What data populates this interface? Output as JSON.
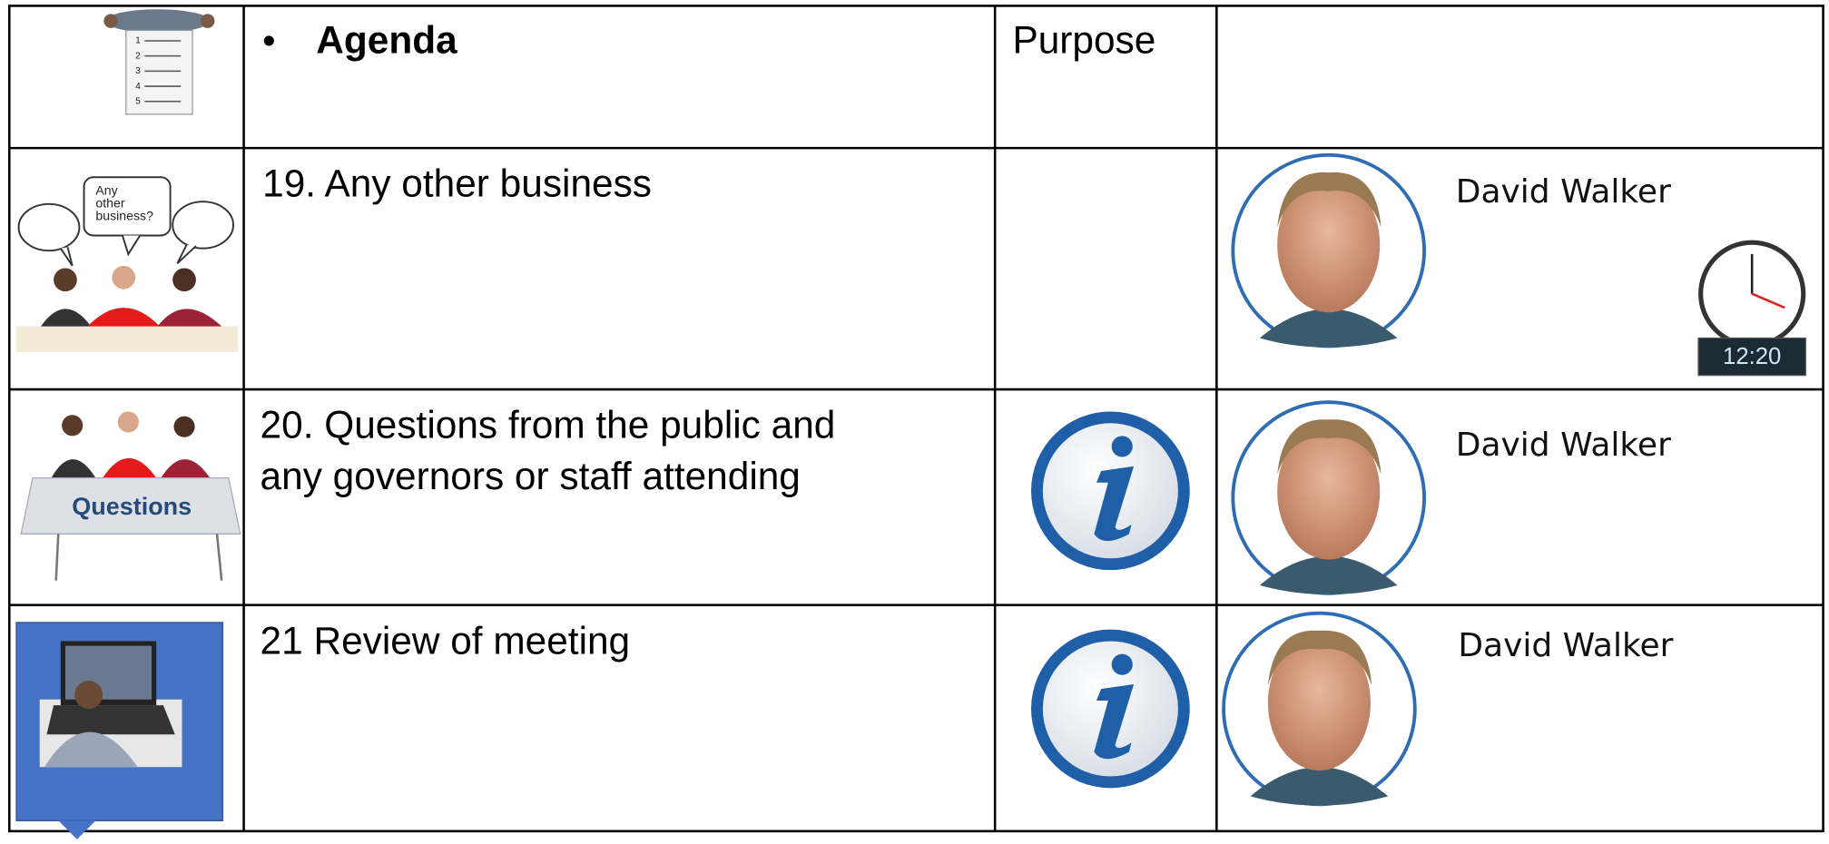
{
  "table": {
    "header": {
      "list_numbers": [
        "1",
        "2",
        "3",
        "4",
        "5"
      ],
      "bullet": "•",
      "agenda": "Agenda",
      "purpose": "Purpose"
    },
    "rows": [
      {
        "picture_text": [
          "Any",
          "other",
          "business?"
        ],
        "item": [
          "19. Any other business"
        ],
        "presenter": "David Walker",
        "time": "12:20"
      },
      {
        "picture_text": [
          "Questions"
        ],
        "item": [
          "20. Questions from the public and",
          "any governors or staff attending"
        ],
        "presenter": "David Walker"
      },
      {
        "item": [
          "21 Review of meeting"
        ],
        "presenter": "David Walker"
      }
    ]
  }
}
